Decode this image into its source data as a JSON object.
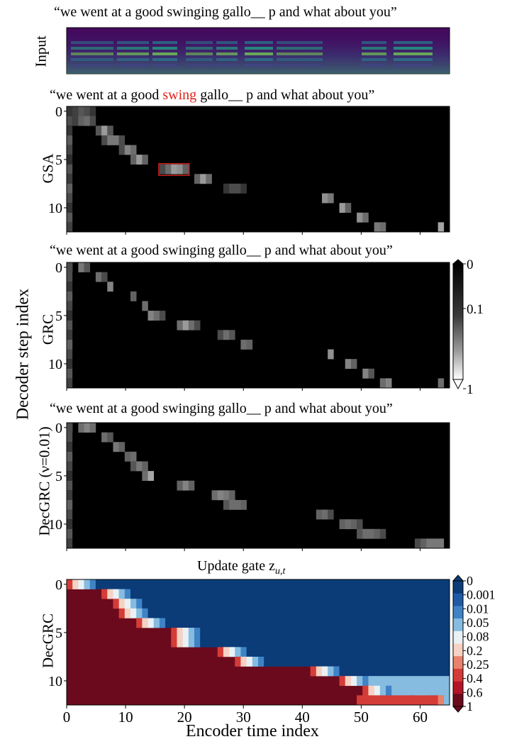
{
  "figure": {
    "shared_ylabel": "Decoder step index",
    "shared_xlabel": "Encoder time index"
  },
  "chart_data": [
    {
      "type": "heatmap",
      "panel": "input",
      "title": "“we went at a good swinging gallo__ p and what about you”",
      "ylabel": "Input"
    },
    {
      "type": "heatmap",
      "panel": "gsa",
      "title_parts": [
        "“we went at a good ",
        "swing",
        " gallo__ p and what about you”"
      ],
      "title_highlight_color": "#e0201a",
      "ylabel": "GSA",
      "yticks": [
        "0",
        "5",
        "10"
      ],
      "rows": 13,
      "cols": 66,
      "alignment": [
        [
          [
            0,
            0.1
          ],
          [
            1,
            0.15
          ],
          [
            2,
            0.25
          ],
          [
            3,
            0.2
          ],
          [
            4,
            0.1
          ]
        ],
        [
          [
            1,
            0.15
          ],
          [
            2,
            0.3
          ],
          [
            3,
            0.35
          ],
          [
            4,
            0.2
          ]
        ],
        [
          [
            5,
            0.25
          ],
          [
            6,
            0.55
          ],
          [
            7,
            0.25
          ]
        ],
        [
          [
            6,
            0.2
          ],
          [
            7,
            0.4
          ],
          [
            8,
            0.4
          ],
          [
            9,
            0.2
          ]
        ],
        [
          [
            9,
            0.2
          ],
          [
            10,
            0.45
          ],
          [
            11,
            0.35
          ]
        ],
        [
          [
            11,
            0.3
          ],
          [
            12,
            0.55
          ],
          [
            13,
            0.3
          ]
        ],
        [
          [
            16,
            0.2
          ],
          [
            17,
            0.35
          ],
          [
            18,
            0.55
          ],
          [
            19,
            0.5
          ],
          [
            20,
            0.3
          ]
        ],
        [
          [
            22,
            0.3
          ],
          [
            23,
            0.55
          ],
          [
            24,
            0.35
          ]
        ],
        [
          [
            27,
            0.1
          ],
          [
            28,
            0.2
          ],
          [
            29,
            0.2
          ],
          [
            30,
            0.1
          ]
        ],
        [
          [
            44,
            0.5
          ],
          [
            45,
            0.4
          ]
        ],
        [
          [
            47,
            0.55
          ],
          [
            48,
            0.3
          ]
        ],
        [
          [
            50,
            0.5
          ],
          [
            51,
            0.35
          ]
        ],
        [
          [
            53,
            0.4
          ],
          [
            54,
            0.35
          ],
          [
            64,
            0.6
          ]
        ]
      ],
      "highlight_box": {
        "row": 6,
        "col_start": 16,
        "col_end": 21,
        "color": "#cc1f1a"
      }
    },
    {
      "type": "heatmap",
      "panel": "grc",
      "title": "“we went at a good swinging gallo__ p and what about you”",
      "ylabel": "GRC",
      "yticks": [
        "0",
        "5",
        "10"
      ],
      "rows": 13,
      "cols": 66,
      "alignment": [
        [
          [
            0,
            0.2
          ],
          [
            2,
            0.4
          ],
          [
            3,
            0.25
          ]
        ],
        [
          [
            5,
            0.35
          ],
          [
            6,
            0.2
          ]
        ],
        [
          [
            7,
            0.45
          ]
        ],
        [
          [
            11,
            0.3
          ]
        ],
        [
          [
            13,
            0.35
          ]
        ],
        [
          [
            14,
            0.45
          ],
          [
            15,
            0.35
          ],
          [
            16,
            0.2
          ]
        ],
        [
          [
            19,
            0.35
          ],
          [
            20,
            0.55
          ],
          [
            21,
            0.35
          ],
          [
            22,
            0.2
          ]
        ],
        [
          [
            26,
            0.2
          ],
          [
            27,
            0.35
          ],
          [
            28,
            0.25
          ]
        ],
        [
          [
            30,
            0.35
          ],
          [
            31,
            0.3
          ]
        ],
        [
          [
            45,
            0.5
          ]
        ],
        [
          [
            48,
            0.45
          ],
          [
            49,
            0.3
          ]
        ],
        [
          [
            51,
            0.45
          ],
          [
            52,
            0.25
          ]
        ],
        [
          [
            54,
            0.35
          ],
          [
            55,
            0.45
          ],
          [
            64,
            0.35
          ]
        ]
      ],
      "colorbar": {
        "ticks": [
          "0",
          "0.1",
          "1"
        ],
        "scale": "log"
      }
    },
    {
      "type": "heatmap",
      "panel": "decgrc",
      "title": "“we went at a good swinging gallo__ p and what about you”",
      "ylabel": "DecGRC (ν=0.01)",
      "yticks": [
        "0",
        "5",
        "10"
      ],
      "rows": 13,
      "cols": 66,
      "alignment": [
        [
          [
            0,
            0.2
          ],
          [
            2,
            0.35
          ],
          [
            3,
            0.45
          ],
          [
            4,
            0.35
          ]
        ],
        [
          [
            6,
            0.35
          ],
          [
            7,
            0.25
          ]
        ],
        [
          [
            8,
            0.4
          ],
          [
            9,
            0.3
          ]
        ],
        [
          [
            10,
            0.3
          ],
          [
            11,
            0.35
          ]
        ],
        [
          [
            11,
            0.25
          ],
          [
            12,
            0.4
          ],
          [
            13,
            0.3
          ]
        ],
        [
          [
            13,
            0.35
          ],
          [
            14,
            0.6
          ]
        ],
        [
          [
            19,
            0.3
          ],
          [
            20,
            0.45
          ],
          [
            21,
            0.3
          ]
        ],
        [
          [
            25,
            0.35
          ],
          [
            26,
            0.45
          ],
          [
            27,
            0.4
          ],
          [
            28,
            0.3
          ]
        ],
        [
          [
            27,
            0.25
          ],
          [
            28,
            0.35
          ],
          [
            29,
            0.35
          ],
          [
            30,
            0.3
          ]
        ],
        [
          [
            43,
            0.3
          ],
          [
            44,
            0.35
          ],
          [
            45,
            0.2
          ]
        ],
        [
          [
            47,
            0.3
          ],
          [
            48,
            0.35
          ],
          [
            49,
            0.3
          ],
          [
            50,
            0.2
          ]
        ],
        [
          [
            50,
            0.25
          ],
          [
            51,
            0.35
          ],
          [
            52,
            0.35
          ],
          [
            53,
            0.3
          ],
          [
            54,
            0.2
          ]
        ],
        [
          [
            60,
            0.2
          ],
          [
            61,
            0.3
          ],
          [
            62,
            0.4
          ],
          [
            63,
            0.4
          ],
          [
            64,
            0.4
          ]
        ]
      ]
    },
    {
      "type": "heatmap",
      "panel": "update_gate",
      "title": "Update gate z",
      "title_subscript": "u,t",
      "ylabel": "DecGRC",
      "xlabel": "Encoder time index",
      "yticks": [
        "0",
        "5",
        "10"
      ],
      "xticks": [
        "0",
        "10",
        "20",
        "30",
        "40",
        "50",
        "60"
      ],
      "xlim": [
        0,
        65
      ],
      "rows": 13,
      "cols": 66,
      "boundaries": [
        5,
        11,
        13,
        14,
        17,
        23,
        23,
        31,
        34,
        47,
        52,
        56,
        64
      ],
      "colorbar": {
        "ticks": [
          "0",
          "0.001",
          "0.01",
          "0.05",
          "0.08",
          "0.2",
          "0.25",
          "0.4",
          "0.6",
          "1"
        ],
        "colors": [
          "#0b3c78",
          "#1f5aa6",
          "#3f83c6",
          "#86bce0",
          "#e9f1f6",
          "#f5d2c3",
          "#e8826d",
          "#d43c37",
          "#b31428",
          "#6b0a1d"
        ]
      }
    }
  ]
}
